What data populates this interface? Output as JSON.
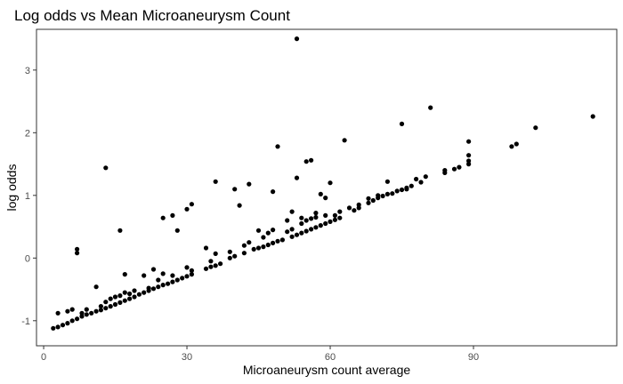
{
  "chart_data": {
    "type": "scatter",
    "title": "Log odds vs Mean Microaneurysm Count",
    "xlabel": "Microaneurysm count average",
    "ylabel": "log odds",
    "xlim": [
      -1.5,
      120
    ],
    "ylim": [
      -1.4,
      3.65
    ],
    "xticks": [
      0,
      30,
      60,
      90
    ],
    "yticks": [
      -1,
      0,
      1,
      2,
      3
    ],
    "xtick_labels": [
      "0",
      "30",
      "60",
      "90"
    ],
    "ytick_labels": [
      "-1",
      "0",
      "1",
      "2",
      "3"
    ],
    "grid": false,
    "point_color": "#000000",
    "panel_border_color": "#333333",
    "points": [
      [
        2.0,
        -1.12
      ],
      [
        3.0,
        -1.1
      ],
      [
        4.0,
        -1.07
      ],
      [
        5.0,
        -1.04
      ],
      [
        6.0,
        -1.0
      ],
      [
        7.0,
        -0.97
      ],
      [
        8.0,
        -0.93
      ],
      [
        9.0,
        -0.9
      ],
      [
        10.0,
        -0.88
      ],
      [
        11.0,
        -0.85
      ],
      [
        12.0,
        -0.83
      ],
      [
        13.0,
        -0.8
      ],
      [
        14.0,
        -0.77
      ],
      [
        15.0,
        -0.74
      ],
      [
        16.0,
        -0.71
      ],
      [
        17.0,
        -0.68
      ],
      [
        18.0,
        -0.65
      ],
      [
        19.0,
        -0.62
      ],
      [
        20.0,
        -0.58
      ],
      [
        21.0,
        -0.55
      ],
      [
        22.0,
        -0.52
      ],
      [
        23.0,
        -0.49
      ],
      [
        24.0,
        -0.46
      ],
      [
        25.0,
        -0.43
      ],
      [
        26.0,
        -0.41
      ],
      [
        27.0,
        -0.38
      ],
      [
        28.0,
        -0.35
      ],
      [
        29.0,
        -0.32
      ],
      [
        30.0,
        -0.29
      ],
      [
        31.0,
        -0.26
      ],
      [
        34.0,
        -0.17
      ],
      [
        35.0,
        -0.14
      ],
      [
        36.0,
        -0.12
      ],
      [
        37.0,
        -0.09
      ],
      [
        39.0,
        0.0
      ],
      [
        40.0,
        0.03
      ],
      [
        42.0,
        0.08
      ],
      [
        44.0,
        0.14
      ],
      [
        45.0,
        0.16
      ],
      [
        46.0,
        0.18
      ],
      [
        47.0,
        0.21
      ],
      [
        48.0,
        0.24
      ],
      [
        49.0,
        0.27
      ],
      [
        50.0,
        0.29
      ],
      [
        52.0,
        0.34
      ],
      [
        53.0,
        0.37
      ],
      [
        54.0,
        0.4
      ],
      [
        55.0,
        0.43
      ],
      [
        56.0,
        0.46
      ],
      [
        57.0,
        0.49
      ],
      [
        58.0,
        0.52
      ],
      [
        59.0,
        0.55
      ],
      [
        60.0,
        0.58
      ],
      [
        61.0,
        0.61
      ],
      [
        62.0,
        0.64
      ],
      [
        65.0,
        0.76
      ],
      [
        66.0,
        0.8
      ],
      [
        68.0,
        0.88
      ],
      [
        69.0,
        0.92
      ],
      [
        70.0,
        0.96
      ],
      [
        71.0,
        0.99
      ],
      [
        72.0,
        1.02
      ],
      [
        74.0,
        1.07
      ],
      [
        75.0,
        1.09
      ],
      [
        76.0,
        1.12
      ],
      [
        77.0,
        1.15
      ],
      [
        79.0,
        1.21
      ],
      [
        84.0,
        1.36
      ],
      [
        86.0,
        1.42
      ],
      [
        89.0,
        1.5
      ],
      [
        3.0,
        -0.88
      ],
      [
        5.0,
        -0.85
      ],
      [
        6.0,
        -0.82
      ],
      [
        8.0,
        -0.88
      ],
      [
        9.0,
        -0.82
      ],
      [
        12.0,
        -0.77
      ],
      [
        13.0,
        -0.7
      ],
      [
        14.0,
        -0.65
      ],
      [
        15.0,
        -0.62
      ],
      [
        16.0,
        -0.6
      ],
      [
        17.0,
        -0.55
      ],
      [
        18.0,
        -0.57
      ],
      [
        19.0,
        -0.52
      ],
      [
        22.0,
        -0.48
      ],
      [
        24.0,
        -0.35
      ],
      [
        25.0,
        -0.25
      ],
      [
        27.0,
        -0.28
      ],
      [
        30.0,
        -0.15
      ],
      [
        31.0,
        -0.2
      ],
      [
        35.0,
        -0.05
      ],
      [
        36.0,
        0.07
      ],
      [
        39.0,
        0.1
      ],
      [
        42.0,
        0.2
      ],
      [
        43.0,
        0.25
      ],
      [
        46.0,
        0.33
      ],
      [
        47.0,
        0.4
      ],
      [
        48.0,
        0.45
      ],
      [
        51.0,
        0.42
      ],
      [
        52.0,
        0.46
      ],
      [
        54.0,
        0.55
      ],
      [
        55.0,
        0.6
      ],
      [
        56.0,
        0.63
      ],
      [
        57.0,
        0.65
      ],
      [
        59.0,
        0.68
      ],
      [
        61.0,
        0.68
      ],
      [
        62.0,
        0.74
      ],
      [
        64.0,
        0.8
      ],
      [
        66.0,
        0.85
      ],
      [
        68.0,
        0.95
      ],
      [
        70.0,
        1.0
      ],
      [
        73.0,
        1.03
      ],
      [
        76.0,
        1.1
      ],
      [
        78.0,
        1.26
      ],
      [
        80.0,
        1.3
      ],
      [
        84.0,
        1.4
      ],
      [
        87.0,
        1.45
      ],
      [
        89.0,
        1.55
      ],
      [
        7.0,
        0.14
      ],
      [
        7.0,
        0.08
      ],
      [
        11.0,
        -0.46
      ],
      [
        13.0,
        1.44
      ],
      [
        16.0,
        0.44
      ],
      [
        17.0,
        -0.26
      ],
      [
        21.0,
        -0.28
      ],
      [
        23.0,
        -0.18
      ],
      [
        25.0,
        0.64
      ],
      [
        27.0,
        0.68
      ],
      [
        28.0,
        0.44
      ],
      [
        30.0,
        0.78
      ],
      [
        31.0,
        0.86
      ],
      [
        34.0,
        0.16
      ],
      [
        36.0,
        1.22
      ],
      [
        40.0,
        1.1
      ],
      [
        41.0,
        0.84
      ],
      [
        43.0,
        1.18
      ],
      [
        45.0,
        0.44
      ],
      [
        48.0,
        1.06
      ],
      [
        49.0,
        1.78
      ],
      [
        51.0,
        0.6
      ],
      [
        52.0,
        0.74
      ],
      [
        53.0,
        1.28
      ],
      [
        53.0,
        3.5
      ],
      [
        54.0,
        0.64
      ],
      [
        55.0,
        1.54
      ],
      [
        56.0,
        1.56
      ],
      [
        57.0,
        0.72
      ],
      [
        58.0,
        1.02
      ],
      [
        59.0,
        0.96
      ],
      [
        60.0,
        1.2
      ],
      [
        63.0,
        1.88
      ],
      [
        72.0,
        1.22
      ],
      [
        75.0,
        2.14
      ],
      [
        81.0,
        2.4
      ],
      [
        89.0,
        1.64
      ],
      [
        89.0,
        1.86
      ],
      [
        98.0,
        1.78
      ],
      [
        99.0,
        1.82
      ],
      [
        103.0,
        2.08
      ],
      [
        115.0,
        2.26
      ]
    ]
  }
}
